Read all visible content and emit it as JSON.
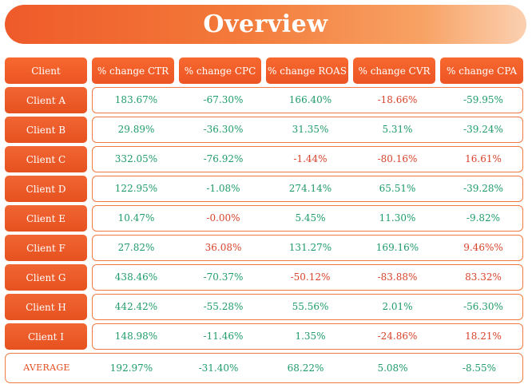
{
  "title": "Overview",
  "headers": [
    "Client",
    "% change CTR",
    "% change CPC",
    "% change ROAS",
    "% change CVR",
    "% change CPA"
  ],
  "rows": [
    {
      "client": "Client A",
      "values": [
        "183.67%",
        "-67.30%",
        "166.40%",
        "-18.66%",
        "-59.95%"
      ],
      "tone": [
        "pos",
        "pos",
        "pos",
        "neg",
        "pos"
      ]
    },
    {
      "client": "Client B",
      "values": [
        "29.89%",
        "-36.30%",
        "31.35%",
        "5.31%",
        "-39.24%"
      ],
      "tone": [
        "pos",
        "pos",
        "pos",
        "pos",
        "pos"
      ]
    },
    {
      "client": "Client C",
      "values": [
        "332.05%",
        "-76.92%",
        "-1.44%",
        "-80.16%",
        "16.61%"
      ],
      "tone": [
        "pos",
        "pos",
        "neg",
        "neg",
        "neg"
      ]
    },
    {
      "client": "Client D",
      "values": [
        "122.95%",
        "-1.08%",
        "274.14%",
        "65.51%",
        "-39.28%"
      ],
      "tone": [
        "pos",
        "pos",
        "pos",
        "pos",
        "pos"
      ]
    },
    {
      "client": "Client E",
      "values": [
        "10.47%",
        "-0.00%",
        "5.45%",
        "11.30%",
        "-9.82%"
      ],
      "tone": [
        "pos",
        "neg",
        "pos",
        "pos",
        "pos"
      ]
    },
    {
      "client": "Client F",
      "values": [
        "27.82%",
        "36.08%",
        "131.27%",
        "169.16%",
        "9.46%%"
      ],
      "tone": [
        "pos",
        "neg",
        "pos",
        "pos",
        "neg"
      ]
    },
    {
      "client": "Client G",
      "values": [
        "438.46%",
        "-70.37%",
        "-50.12%",
        "-83.88%",
        "83.32%"
      ],
      "tone": [
        "pos",
        "pos",
        "neg",
        "neg",
        "neg"
      ]
    },
    {
      "client": "Client H",
      "values": [
        "442.42%",
        "-55.28%",
        "55.56%",
        "2.01%",
        "-56.30%"
      ],
      "tone": [
        "pos",
        "pos",
        "pos",
        "pos",
        "pos"
      ]
    },
    {
      "client": "Client I",
      "values": [
        "148.98%",
        "-11.46%",
        "1.35%",
        "-24.86%",
        "18.21%"
      ],
      "tone": [
        "pos",
        "pos",
        "pos",
        "neg",
        "neg"
      ]
    }
  ],
  "average": {
    "label": "AVERAGE",
    "values": [
      "192.97%",
      "-31.40%",
      "68.22%",
      "5.08%",
      "-8.55%"
    ],
    "tone": [
      "pos",
      "pos",
      "pos",
      "pos",
      "pos"
    ]
  },
  "colors": {
    "positive": "#1f9c6a",
    "negative": "#d8432a",
    "accent": "#ef5a2a"
  }
}
